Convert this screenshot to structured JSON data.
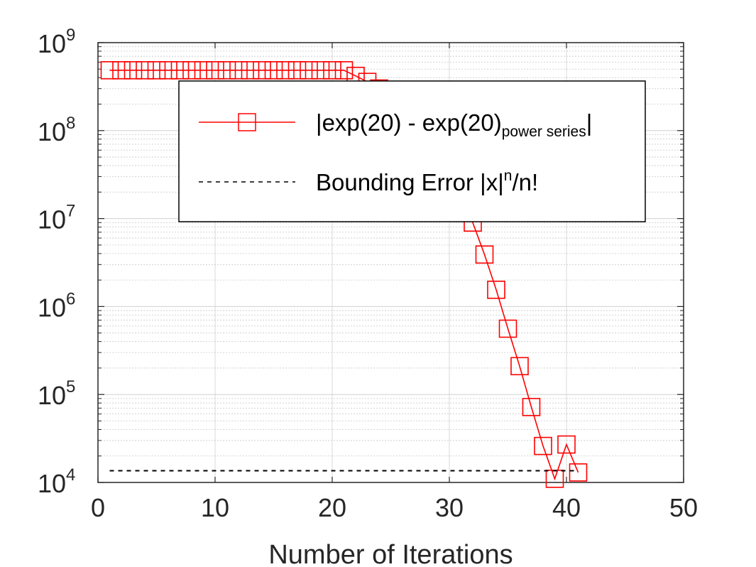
{
  "chart_data": {
    "type": "line",
    "title": "",
    "xlabel": "Number of Iterations",
    "ylabel": "",
    "xlim": [
      0,
      50
    ],
    "ylim": [
      10000,
      1000000000
    ],
    "yscale": "log",
    "grid": true,
    "xticks": [
      "0",
      "10",
      "20",
      "30",
      "40",
      "50"
    ],
    "yticks": [
      {
        "base": "10",
        "exp": "4"
      },
      {
        "base": "10",
        "exp": "5"
      },
      {
        "base": "10",
        "exp": "6"
      },
      {
        "base": "10",
        "exp": "7"
      },
      {
        "base": "10",
        "exp": "8"
      },
      {
        "base": "10",
        "exp": "9"
      }
    ],
    "legend": {
      "position": "upper-center",
      "entries": [
        {
          "pre": "|exp(20) - exp(20)",
          "sub": "power series",
          "post": "|"
        },
        {
          "pre": "Bounding Error |x|",
          "sup": "n",
          "post": "/n!"
        }
      ]
    },
    "series": [
      {
        "color": "#ff0000",
        "marker": "square",
        "linestyle": "solid",
        "x": [
          1,
          2,
          3,
          4,
          5,
          6,
          7,
          8,
          9,
          10,
          11,
          12,
          13,
          14,
          15,
          16,
          17,
          18,
          19,
          20,
          21,
          22,
          23,
          24,
          25,
          26,
          27,
          28,
          29,
          30,
          31,
          32,
          33,
          34,
          35,
          36,
          37,
          38,
          39,
          40,
          41
        ],
        "y": [
          485165195,
          485165195,
          485165194,
          485165193,
          485165188,
          485165176,
          485165151,
          485165101,
          485165007,
          485164839,
          485164557,
          485164094,
          485163396,
          485162387,
          485160926,
          485158842,
          485155930,
          485151919,
          485146535,
          485139380,
          485130012,
          419000000,
          358000000,
          301000000,
          246000000,
          193000000,
          144000000,
          101000000,
          64000000,
          36000000,
          18500000,
          9000000,
          3900000,
          1550000,
          560000,
          210000,
          72000,
          26000,
          11000,
          27000,
          13000
        ]
      },
      {
        "color": "#000000",
        "marker": "none",
        "linestyle": "dashed",
        "x": [
          1,
          41
        ],
        "y": [
          13600,
          13600
        ]
      }
    ]
  }
}
